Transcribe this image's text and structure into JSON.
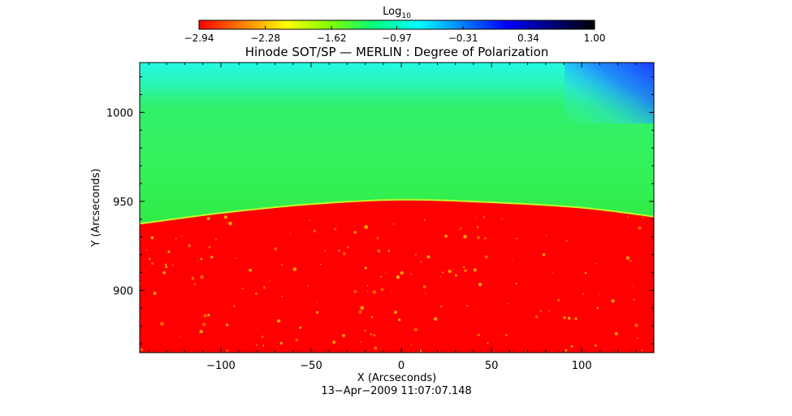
{
  "chart_data": {
    "type": "heatmap",
    "title": "Hinode SOT/SP — MERLIN : Degree of Polarization",
    "xlabel": "X (Arcseconds)",
    "ylabel": "Y (Arcseconds)",
    "xlim": [
      -145,
      140
    ],
    "ylim": [
      865,
      1028
    ],
    "xticks": [
      -100,
      -50,
      0,
      50,
      100
    ],
    "xtick_labels": [
      "−100",
      "−50",
      "0",
      "50",
      "100"
    ],
    "yticks": [
      900,
      950,
      1000
    ],
    "ytick_labels": [
      "900",
      "950",
      "1000"
    ],
    "colorbar": {
      "title": "Log",
      "title_subscript": "10",
      "range": [
        -2.94,
        1.0
      ],
      "ticks": [
        -2.94,
        -2.28,
        -1.62,
        -0.97,
        -0.31,
        0.34,
        1.0
      ],
      "tick_labels": [
        "−2.94",
        "−2.28",
        "−1.62",
        "−0.97",
        "−0.31",
        "0.34",
        "1.00"
      ],
      "colors": [
        "#ff0000",
        "#ff8000",
        "#ffff00",
        "#80ff00",
        "#00ff80",
        "#00ffff",
        "#0080ff",
        "#0000ff",
        "#000080",
        "#000000"
      ]
    },
    "limb": {
      "description_values": "solar limb height (Y arcsec) vs X",
      "x": [
        -145,
        -100,
        -50,
        0,
        50,
        100,
        140
      ],
      "y": [
        937,
        943,
        948,
        950.5,
        949,
        946,
        941
      ]
    },
    "regions": {
      "disk_value": -2.94,
      "offlimb_value": -0.97,
      "top_right_value": -0.31
    },
    "timestamp": "13−Apr−2009 11:07:07.148"
  }
}
